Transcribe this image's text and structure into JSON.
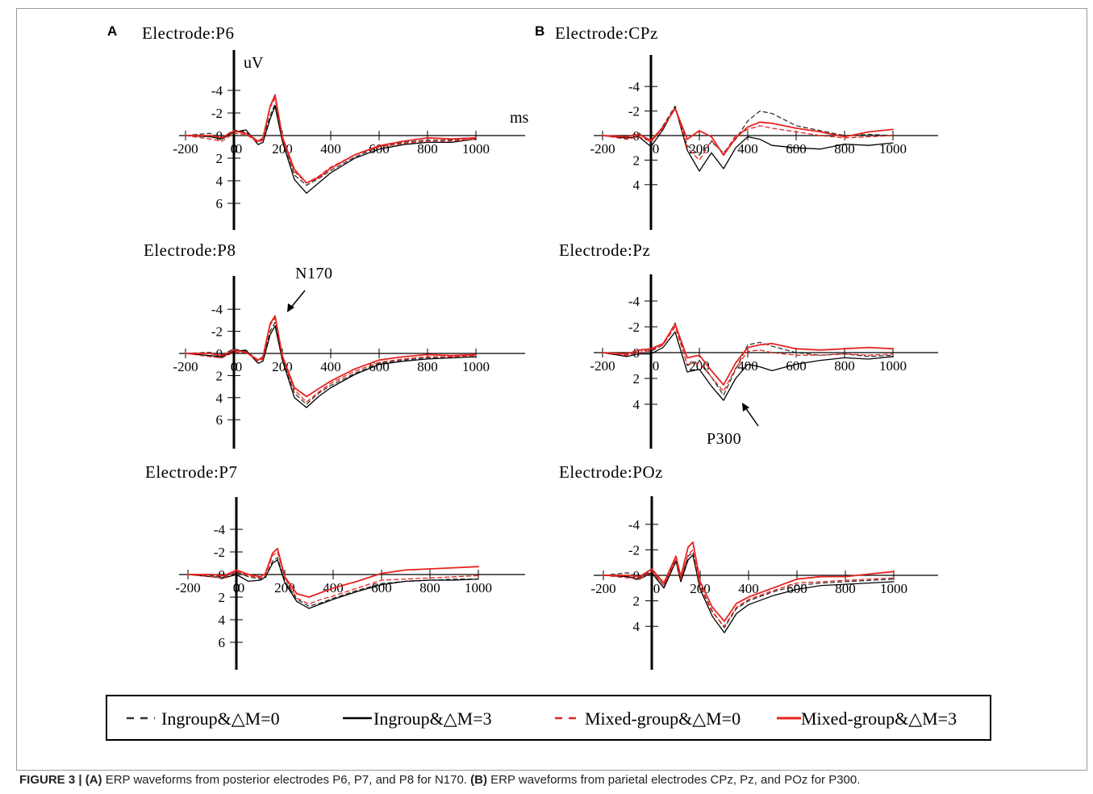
{
  "caption": {
    "label": "FIGURE 3 |",
    "part_a_letter": "(A)",
    "part_a_text": " ERP waveforms from posterior electrodes P6, P7, and P8 for N170. ",
    "part_b_letter": "(B)",
    "part_b_text": " ERP waveforms from parietal electrodes CPz, Pz, and POz for P300."
  },
  "panel_letters": [
    "A",
    "B"
  ],
  "colors": {
    "black": "#000000",
    "gray": "#555555",
    "red": "#e8231f",
    "red_dashed": "#f06060"
  },
  "legend": [
    {
      "label": "Ingroup&△M=0",
      "color": "#333333",
      "style": "dashed"
    },
    {
      "label": "Ingroup&△M=3",
      "color": "#000000",
      "style": "solid"
    },
    {
      "label": "Mixed-group&△M=0",
      "color": "#e8231f",
      "style": "dashed"
    },
    {
      "label": "Mixed-group&△M=3",
      "color": "#e8231f",
      "style": "solid"
    }
  ],
  "chart_data": [
    {
      "type": "line",
      "title": "Electrode:P6",
      "ylabel": "uV",
      "xlabel": "ms",
      "x_ticks": [
        -200,
        0,
        200,
        400,
        600,
        800,
        1000
      ],
      "y_ticks": [
        -4,
        -2,
        0,
        2,
        4,
        6
      ],
      "y_inverted": true,
      "xlim": [
        -200,
        1000
      ],
      "ylim": [
        -8,
        7
      ],
      "annotation": null,
      "x": [
        -200,
        -100,
        -50,
        0,
        50,
        100,
        120,
        150,
        170,
        200,
        250,
        300,
        350,
        400,
        500,
        600,
        700,
        800,
        900,
        1000
      ],
      "series": [
        {
          "legend": 0,
          "values": [
            0,
            -0.2,
            0.2,
            -0.5,
            -0.3,
            0.5,
            0.3,
            -1.8,
            -2.8,
            0.2,
            3.5,
            4.4,
            3.8,
            3.1,
            1.9,
            1.0,
            0.6,
            0.4,
            0.4,
            0.2
          ]
        },
        {
          "legend": 1,
          "values": [
            0,
            0.1,
            0.3,
            -0.3,
            -0.5,
            0.8,
            0.6,
            -1.5,
            -2.6,
            0.5,
            3.9,
            5.1,
            4.2,
            3.3,
            2.0,
            1.2,
            0.8,
            0.6,
            0.6,
            0.3
          ]
        },
        {
          "legend": 2,
          "values": [
            0,
            0.3,
            0.5,
            -0.2,
            -0.1,
            0.6,
            0.4,
            -2.5,
            -3.3,
            0.3,
            3.2,
            4.2,
            3.6,
            2.8,
            1.7,
            1.0,
            0.7,
            0.5,
            0.5,
            0.3
          ]
        },
        {
          "legend": 3,
          "values": [
            0,
            0,
            0.2,
            -0.4,
            -0.2,
            0.5,
            0.2,
            -2.6,
            -3.6,
            0.1,
            3.0,
            4.2,
            3.7,
            2.9,
            1.7,
            0.9,
            0.5,
            0.2,
            0.3,
            0.2
          ]
        }
      ]
    },
    {
      "type": "line",
      "title": "Electrode:P8",
      "ylabel": "",
      "xlabel": "",
      "x_ticks": [
        -200,
        0,
        200,
        400,
        600,
        800,
        1000
      ],
      "y_ticks": [
        -4,
        -2,
        0,
        2,
        4,
        6
      ],
      "y_inverted": true,
      "xlim": [
        -200,
        1000
      ],
      "ylim": [
        -7,
        8
      ],
      "annotation": "N170",
      "x": [
        -200,
        -100,
        -50,
        0,
        50,
        100,
        120,
        150,
        170,
        200,
        250,
        300,
        350,
        400,
        500,
        600,
        700,
        800,
        900,
        1000
      ],
      "series": [
        {
          "legend": 0,
          "values": [
            0,
            -0.1,
            0.1,
            -0.4,
            -0.2,
            0.6,
            0.4,
            -2.0,
            -2.8,
            0.4,
            3.6,
            4.6,
            3.6,
            2.9,
            1.8,
            0.9,
            0.6,
            0.4,
            0.3,
            0.2
          ]
        },
        {
          "legend": 1,
          "values": [
            0,
            0.2,
            0.3,
            -0.2,
            -0.3,
            0.9,
            0.7,
            -1.7,
            -2.5,
            0.6,
            4.0,
            4.9,
            3.9,
            3.1,
            1.9,
            1.0,
            0.7,
            0.5,
            0.4,
            0.3
          ]
        },
        {
          "legend": 2,
          "values": [
            0,
            0.3,
            0.4,
            -0.1,
            -0.1,
            0.7,
            0.5,
            -2.6,
            -3.2,
            0.4,
            3.3,
            4.4,
            3.5,
            2.7,
            1.6,
            0.8,
            0.5,
            0.3,
            0.3,
            0.2
          ]
        },
        {
          "legend": 3,
          "values": [
            0,
            0,
            0.2,
            -0.3,
            -0.1,
            0.6,
            0.3,
            -2.7,
            -3.4,
            0.2,
            3.1,
            3.9,
            3.2,
            2.5,
            1.4,
            0.6,
            0.3,
            0.1,
            0.2,
            0.1
          ]
        }
      ]
    },
    {
      "type": "line",
      "title": "Electrode:P7",
      "ylabel": "",
      "xlabel": "",
      "x_ticks": [
        -200,
        0,
        200,
        400,
        600,
        800,
        1000
      ],
      "y_ticks": [
        -4,
        -2,
        0,
        2,
        4,
        6
      ],
      "y_inverted": true,
      "xlim": [
        -200,
        1000
      ],
      "ylim": [
        -7,
        8
      ],
      "annotation": null,
      "x": [
        -200,
        -100,
        -50,
        0,
        50,
        100,
        120,
        150,
        170,
        200,
        250,
        300,
        350,
        400,
        500,
        600,
        700,
        800,
        900,
        1000
      ],
      "series": [
        {
          "legend": 0,
          "values": [
            0,
            0.1,
            0.2,
            -0.2,
            0.2,
            0.4,
            0.3,
            -1.2,
            -1.5,
            0.6,
            2.2,
            2.8,
            2.5,
            2.1,
            1.4,
            0.8,
            0.6,
            0.5,
            0.4,
            0.4
          ]
        },
        {
          "legend": 1,
          "values": [
            0,
            0.2,
            0.3,
            0,
            0.6,
            0.5,
            0.2,
            -1.0,
            -1.3,
            0.7,
            2.4,
            3.0,
            2.6,
            2.2,
            1.5,
            0.9,
            0.6,
            0.5,
            0.5,
            0.4
          ]
        },
        {
          "legend": 2,
          "values": [
            0,
            0.2,
            0.3,
            -0.3,
            0.1,
            0.3,
            0.1,
            -1.7,
            -2.0,
            0.3,
            2.1,
            2.6,
            2.2,
            1.9,
            1.2,
            0.5,
            0.4,
            0.3,
            0.2,
            0.1
          ]
        },
        {
          "legend": 3,
          "values": [
            0,
            0,
            0.1,
            -0.4,
            0,
            0.2,
            -0.1,
            -1.9,
            -2.3,
            0.2,
            1.7,
            2.0,
            1.6,
            1.2,
            0.6,
            -0.1,
            -0.4,
            -0.5,
            -0.6,
            -0.7
          ]
        }
      ]
    },
    {
      "type": "line",
      "title": "Electrode:CPz",
      "ylabel": "",
      "xlabel": "",
      "x_ticks": [
        -200,
        200,
        400,
        600,
        800,
        1000
      ],
      "y_ticks": [
        -4,
        -2,
        0,
        2,
        4
      ],
      "y_inverted": true,
      "xlim": [
        -200,
        1000
      ],
      "ylim": [
        -7,
        8
      ],
      "annotation": null,
      "x": [
        -200,
        -100,
        -50,
        0,
        50,
        100,
        150,
        200,
        250,
        300,
        350,
        400,
        450,
        500,
        600,
        700,
        800,
        900,
        1000
      ],
      "series": [
        {
          "legend": 0,
          "values": [
            0,
            0.1,
            -0.2,
            0.6,
            -0.8,
            -2.4,
            0.8,
            1.6,
            0.5,
            1.4,
            0.3,
            -1.2,
            -2.0,
            -1.8,
            -0.8,
            -0.4,
            0,
            -0.1,
            0
          ]
        },
        {
          "legend": 1,
          "values": [
            0,
            0.2,
            0.1,
            0.9,
            -0.5,
            -2.3,
            1.2,
            2.9,
            1.4,
            2.7,
            1.0,
            0.1,
            0.3,
            0.8,
            1.0,
            1.1,
            0.7,
            0.8,
            0.6
          ]
        },
        {
          "legend": 2,
          "values": [
            0,
            0.3,
            0.1,
            0.5,
            -0.6,
            -2.3,
            1.0,
            2.0,
            0.4,
            1.5,
            0.0,
            -0.5,
            -0.8,
            -0.6,
            -0.3,
            0,
            0.2,
            0.1,
            0
          ]
        },
        {
          "legend": 3,
          "values": [
            0,
            0.1,
            -0.1,
            0.4,
            -0.7,
            -2.2,
            0.3,
            -0.4,
            0.1,
            1.6,
            0.2,
            -0.7,
            -1.1,
            -1.0,
            -0.6,
            -0.3,
            0.1,
            -0.3,
            -0.5
          ]
        }
      ]
    },
    {
      "type": "line",
      "title": "Electrode:Pz",
      "ylabel": "",
      "xlabel": "",
      "x_ticks": [
        -200,
        200,
        400,
        600,
        800,
        1000
      ],
      "y_ticks": [
        -4,
        -2,
        0,
        2,
        4
      ],
      "y_inverted": true,
      "xlim": [
        -200,
        1000
      ],
      "ylim": [
        -7,
        8
      ],
      "annotation": "P300",
      "x": [
        -200,
        -100,
        -50,
        0,
        50,
        100,
        150,
        200,
        250,
        300,
        350,
        400,
        450,
        500,
        600,
        700,
        800,
        900,
        1000
      ],
      "series": [
        {
          "legend": 0,
          "values": [
            0,
            0.2,
            -0.2,
            -0.1,
            -0.6,
            -2.3,
            1.0,
            0.6,
            1.9,
            3.3,
            1.3,
            -0.6,
            -0.8,
            -0.5,
            0,
            0.2,
            0.1,
            0.3,
            0.2
          ]
        },
        {
          "legend": 1,
          "values": [
            0,
            0.3,
            0.1,
            0.1,
            -0.4,
            -1.6,
            1.5,
            1.3,
            2.6,
            3.7,
            2.0,
            0.9,
            1.1,
            1.4,
            0.9,
            0.6,
            0.4,
            0.5,
            0.3
          ]
        },
        {
          "legend": 2,
          "values": [
            0,
            0.2,
            0,
            -0.2,
            -0.6,
            -2.0,
            0.9,
            0.8,
            1.9,
            3.0,
            1.2,
            -0.1,
            -0.2,
            0,
            0.2,
            0.2,
            0.1,
            0.2,
            0.1
          ]
        },
        {
          "legend": 3,
          "values": [
            0,
            0.1,
            -0.2,
            -0.3,
            -0.7,
            -2.2,
            0.4,
            0.2,
            1.4,
            2.5,
            0.8,
            -0.4,
            -0.6,
            -0.7,
            -0.3,
            -0.2,
            -0.3,
            -0.4,
            -0.3
          ]
        }
      ]
    },
    {
      "type": "line",
      "title": "Electrode:POz",
      "ylabel": "",
      "xlabel": "",
      "x_ticks": [
        -200,
        200,
        400,
        600,
        800,
        1000
      ],
      "y_ticks": [
        -4,
        -2,
        0,
        2,
        4
      ],
      "y_inverted": true,
      "xlim": [
        -200,
        1000
      ],
      "ylim": [
        -7,
        8
      ],
      "annotation": null,
      "x": [
        -200,
        -100,
        -50,
        0,
        50,
        100,
        120,
        150,
        170,
        200,
        250,
        300,
        350,
        400,
        500,
        600,
        700,
        800,
        900,
        1000
      ],
      "series": [
        {
          "legend": 0,
          "values": [
            0,
            -0.2,
            0.2,
            -0.4,
            0.8,
            -1.3,
            0.3,
            -1.5,
            -1.8,
            0.8,
            2.8,
            4.1,
            2.6,
            2.0,
            1.3,
            0.8,
            0.6,
            0.5,
            0.4,
            0.3
          ]
        },
        {
          "legend": 1,
          "values": [
            0,
            0.1,
            0.3,
            -0.2,
            1.0,
            -1.1,
            0.5,
            -1.2,
            -1.6,
            1.1,
            3.2,
            4.5,
            3.0,
            2.3,
            1.6,
            1.1,
            0.8,
            0.7,
            0.6,
            0.5
          ]
        },
        {
          "legend": 2,
          "values": [
            0,
            0.2,
            0.3,
            -0.3,
            0.8,
            -1.2,
            0.3,
            -1.6,
            -2.0,
            0.9,
            2.9,
            4.0,
            2.5,
            1.9,
            1.2,
            0.6,
            0.5,
            0.4,
            0.3,
            0.2
          ]
        },
        {
          "legend": 3,
          "values": [
            0,
            0,
            0.1,
            -0.5,
            0.6,
            -1.5,
            0.1,
            -2.2,
            -2.6,
            0.5,
            2.5,
            3.6,
            2.2,
            1.7,
            1.0,
            0.3,
            0.1,
            0.1,
            -0.1,
            -0.3
          ]
        }
      ]
    }
  ]
}
